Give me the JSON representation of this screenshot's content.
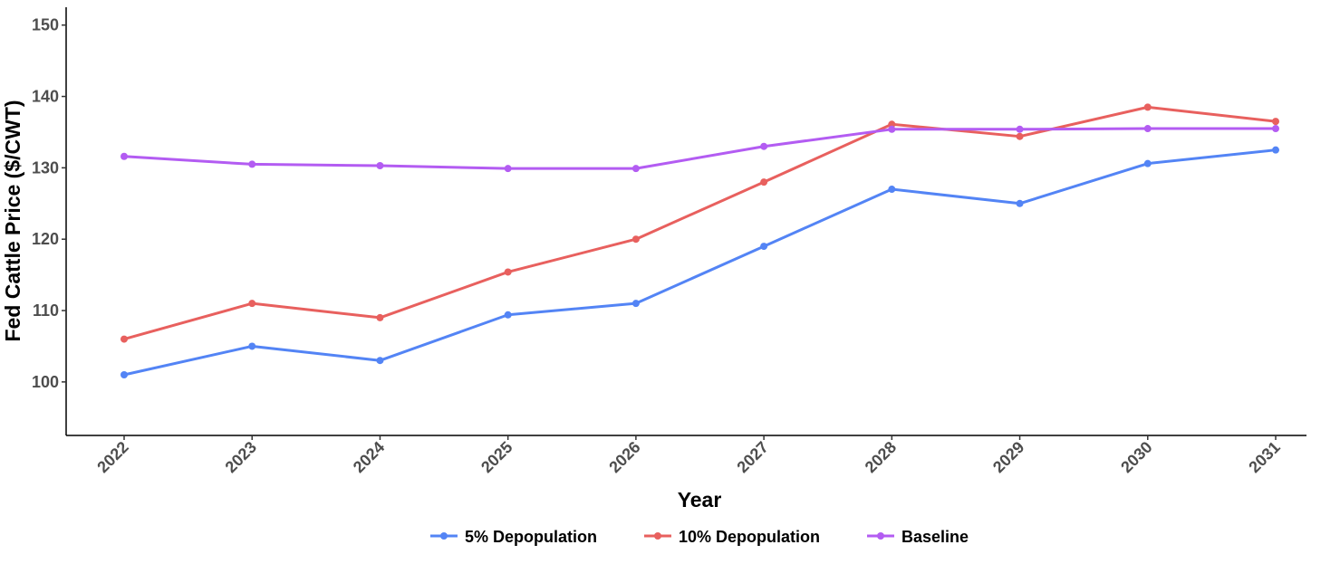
{
  "chart_data": {
    "type": "line",
    "title": "",
    "xlabel": "Year",
    "ylabel": "Fed Cattle Price ($/CWT)",
    "ylim": [
      92.5,
      152.5
    ],
    "yticks": [
      100,
      110,
      120,
      130,
      140,
      150
    ],
    "x": [
      "2022",
      "2023",
      "2024",
      "2025",
      "2026",
      "2027",
      "2028",
      "2029",
      "2030",
      "2031"
    ],
    "grid": false,
    "legend_position": "bottom",
    "series": [
      {
        "name": "5% Depopulation",
        "color": "#5384f5",
        "values": [
          101.0,
          105.0,
          103.0,
          109.4,
          111.0,
          119.0,
          127.0,
          125.0,
          130.6,
          132.5
        ]
      },
      {
        "name": "10% Depopulation",
        "color": "#e8605e",
        "values": [
          106.0,
          111.0,
          109.0,
          115.4,
          120.0,
          128.0,
          136.1,
          134.4,
          138.5,
          136.5
        ]
      },
      {
        "name": "Baseline",
        "color": "#b35cf2",
        "values": [
          131.6,
          130.5,
          130.3,
          129.9,
          129.9,
          133.0,
          135.4,
          135.4,
          135.5,
          135.5
        ]
      }
    ]
  }
}
